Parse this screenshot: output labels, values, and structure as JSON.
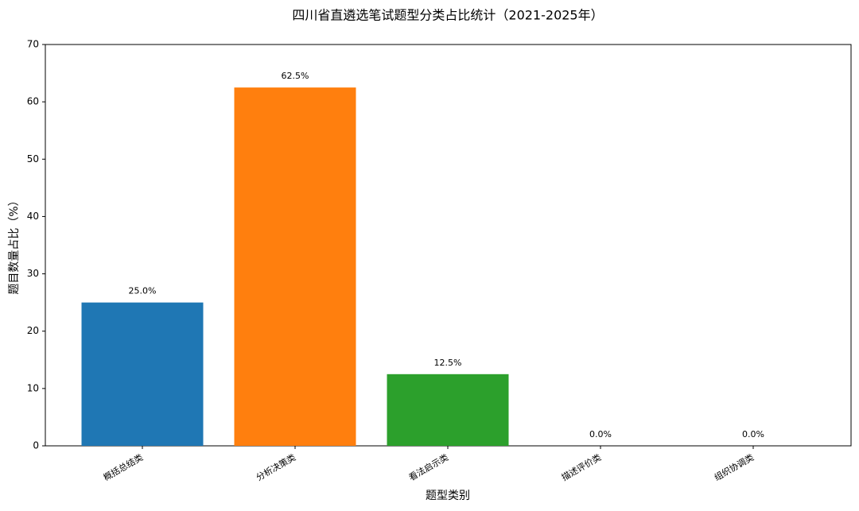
{
  "chart_data": {
    "type": "bar",
    "title": "四川省直遴选笔试题型分类占比统计（2021-2025年）",
    "x_label": "题型类别",
    "y_label": "题目数量占比（%）",
    "categories": [
      "概括总结类",
      "分析决策类",
      "看法启示类",
      "描述评价类",
      "组织协调类"
    ],
    "values": [
      25,
      62.5,
      12.5,
      0,
      0
    ],
    "value_labels": [
      "25.0%",
      "62.5%",
      "12.5%",
      "0.0%",
      "0.0%"
    ],
    "colors": [
      "#1f77b4",
      "#ff7f0e",
      "#2ca02c",
      "#d62728",
      "#9467bd"
    ],
    "ylim": [
      0,
      70
    ],
    "yticks": [
      0,
      10,
      20,
      30,
      40,
      50,
      60,
      70
    ],
    "grid": false
  }
}
